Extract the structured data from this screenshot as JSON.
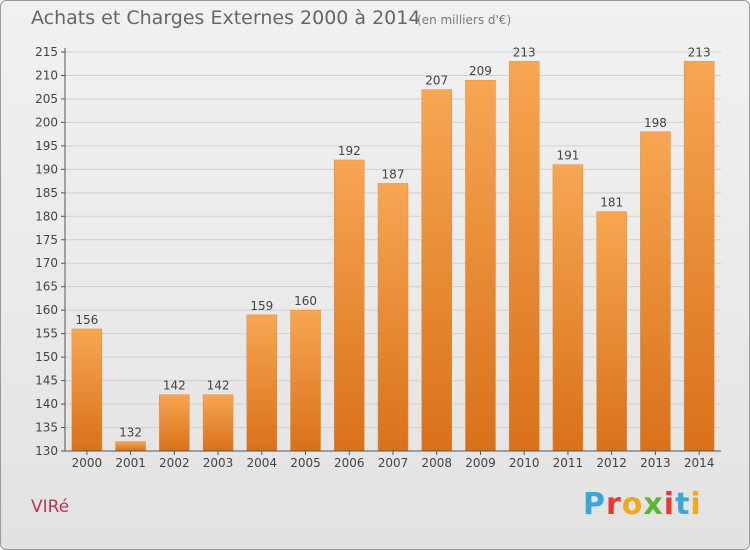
{
  "header": {
    "title": "Achats et Charges Externes 2000 à 2014",
    "subtitle": "(en milliers d'€)"
  },
  "footer": {
    "location": "VIRé",
    "brand": "Proxiti",
    "brand_colors": [
      "#3aa7d9",
      "#e8392f",
      "#f0a81c",
      "#5bb830",
      "#e8392f",
      "#3aa7d9",
      "#f0a81c"
    ]
  },
  "colors": {
    "bar_top": "#f7a652",
    "bar_bottom": "#d9711a",
    "grid": "#d0d0d0",
    "axis": "#555555",
    "text": "#444444"
  },
  "chart_data": {
    "type": "bar",
    "categories": [
      "2000",
      "2001",
      "2002",
      "2003",
      "2004",
      "2005",
      "2006",
      "2007",
      "2008",
      "2009",
      "2010",
      "2011",
      "2012",
      "2013",
      "2014"
    ],
    "values": [
      156,
      132,
      142,
      142,
      159,
      160,
      192,
      187,
      207,
      209,
      213,
      191,
      181,
      198,
      213
    ],
    "data_labels": [
      "156",
      "132",
      "142",
      "142",
      "159",
      "160",
      "192",
      "187",
      "207",
      "209",
      "213",
      "191",
      "181",
      "198",
      "213"
    ],
    "yticks": [
      130,
      135,
      140,
      145,
      150,
      155,
      160,
      165,
      170,
      175,
      180,
      185,
      190,
      195,
      200,
      205,
      210,
      215
    ],
    "ylim": [
      130,
      215
    ],
    "grid": true,
    "legend": "none"
  }
}
